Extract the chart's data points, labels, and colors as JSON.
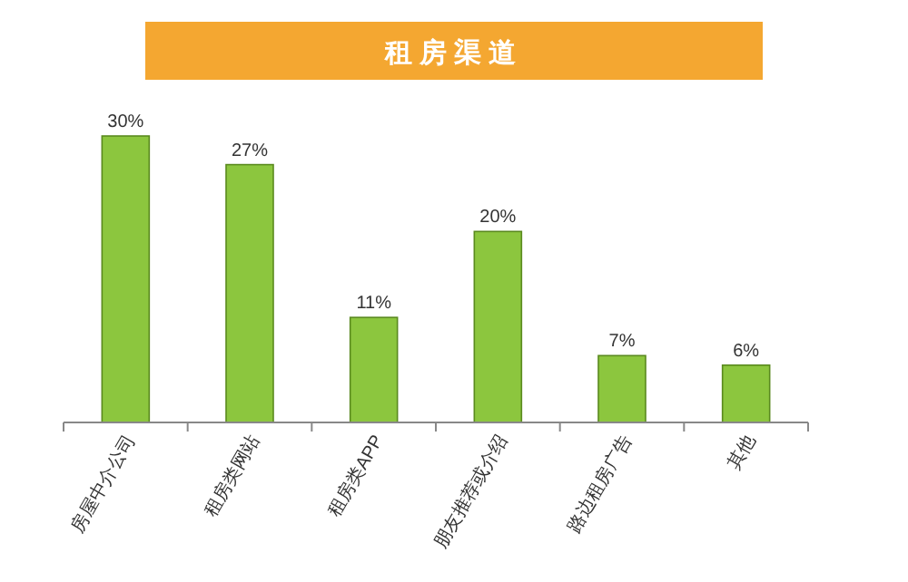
{
  "chart_data": {
    "type": "bar",
    "title": "租房渠道",
    "categories": [
      "房屋中介公司",
      "租房类网站",
      "租房类APP",
      "朋友推荐或介绍",
      "路边租房广告",
      "其他"
    ],
    "values": [
      30,
      27,
      11,
      20,
      7,
      6
    ],
    "color": "#8cc63e",
    "data_labels": true,
    "value_labels": [
      "30%",
      "27%",
      "11%",
      "20%",
      "7%",
      "6%"
    ]
  }
}
